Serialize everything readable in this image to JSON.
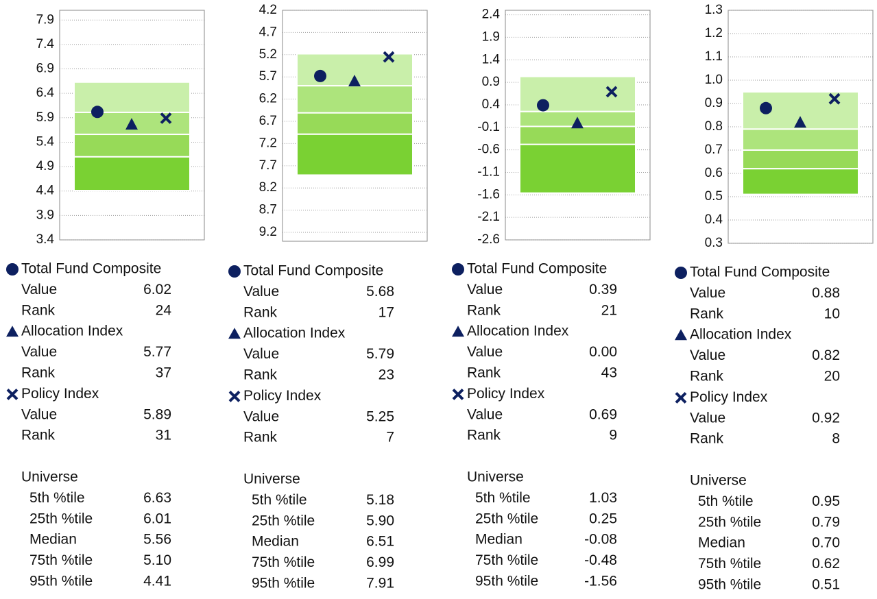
{
  "chart_data": [
    {
      "type": "percentile",
      "ylim": [
        3.4,
        8.1
      ],
      "yticks": [
        3.4,
        3.9,
        4.4,
        4.9,
        5.4,
        5.9,
        6.4,
        6.9,
        7.4,
        7.9
      ],
      "grid": true,
      "value_label": "Value",
      "rank_label": "Rank",
      "series": [
        {
          "name": "Total Fund Composite",
          "marker": "circle",
          "color": "#0d2060",
          "values": [
            6.02
          ],
          "value_labels": [
            "6.02"
          ],
          "rank": 24
        },
        {
          "name": "Allocation Index",
          "marker": "triangle",
          "color": "#0d2060",
          "values": [
            5.77
          ],
          "value_labels": [
            "5.77"
          ],
          "rank": 37
        },
        {
          "name": "Policy Index",
          "marker": "x",
          "color": "#0d2060",
          "values": [
            5.89
          ],
          "value_labels": [
            "5.89"
          ],
          "rank": 31
        }
      ],
      "universe": {
        "name": "Universe",
        "labels": [
          "5th %tile",
          "25th %tile",
          "Median",
          "75th %tile",
          "95th %tile"
        ],
        "values": [
          6.63,
          6.01,
          5.56,
          5.1,
          4.41
        ],
        "value_labels": [
          "6.63",
          "6.01",
          "5.56",
          "5.10",
          "4.41"
        ],
        "colors": [
          "#c9efaa",
          "#ade47c",
          "#97da58",
          "#7ad133"
        ]
      }
    },
    {
      "type": "percentile",
      "ylim": [
        9.4,
        4.2
      ],
      "yticks": [
        4.2,
        4.7,
        5.2,
        5.7,
        6.2,
        6.7,
        7.2,
        7.7,
        8.2,
        8.7,
        9.2
      ],
      "grid": true,
      "value_label": "Value",
      "rank_label": "Rank",
      "series": [
        {
          "name": "Total Fund Composite",
          "marker": "circle",
          "color": "#0d2060",
          "values": [
            5.68
          ],
          "value_labels": [
            "5.68"
          ],
          "rank": 17
        },
        {
          "name": "Allocation Index",
          "marker": "triangle",
          "color": "#0d2060",
          "values": [
            5.79
          ],
          "value_labels": [
            "5.79"
          ],
          "rank": 23
        },
        {
          "name": "Policy Index",
          "marker": "x",
          "color": "#0d2060",
          "values": [
            5.25
          ],
          "value_labels": [
            "5.25"
          ],
          "rank": 7
        }
      ],
      "universe": {
        "name": "Universe",
        "labels": [
          "5th %tile",
          "25th %tile",
          "Median",
          "75th %tile",
          "95th %tile"
        ],
        "values": [
          5.18,
          5.9,
          6.51,
          6.99,
          7.91
        ],
        "value_labels": [
          "5.18",
          "5.90",
          "6.51",
          "6.99",
          "7.91"
        ],
        "colors": [
          "#c9efaa",
          "#ade47c",
          "#97da58",
          "#7ad133"
        ]
      }
    },
    {
      "type": "percentile",
      "ylim": [
        -2.6,
        2.5
      ],
      "yticks": [
        -2.6,
        -2.1,
        -1.6,
        -1.1,
        -0.6,
        -0.1,
        0.4,
        0.9,
        1.4,
        1.9,
        2.4
      ],
      "grid": true,
      "value_label": "Value",
      "rank_label": "Rank",
      "series": [
        {
          "name": "Total Fund Composite",
          "marker": "circle",
          "color": "#0d2060",
          "values": [
            0.39
          ],
          "value_labels": [
            "0.39"
          ],
          "rank": 21
        },
        {
          "name": "Allocation Index",
          "marker": "triangle",
          "color": "#0d2060",
          "values": [
            0.0
          ],
          "value_labels": [
            "0.00"
          ],
          "rank": 43
        },
        {
          "name": "Policy Index",
          "marker": "x",
          "color": "#0d2060",
          "values": [
            0.69
          ],
          "value_labels": [
            "0.69"
          ],
          "rank": 9
        }
      ],
      "universe": {
        "name": "Universe",
        "labels": [
          "5th %tile",
          "25th %tile",
          "Median",
          "75th %tile",
          "95th %tile"
        ],
        "values": [
          1.03,
          0.25,
          -0.08,
          -0.48,
          -1.56
        ],
        "value_labels": [
          "1.03",
          "0.25",
          "-0.08",
          "-0.48",
          "-1.56"
        ],
        "colors": [
          "#c9efaa",
          "#ade47c",
          "#97da58",
          "#7ad133"
        ]
      }
    },
    {
      "type": "percentile",
      "ylim": [
        0.3,
        1.3
      ],
      "yticks": [
        0.3,
        0.4,
        0.5,
        0.6,
        0.7,
        0.8,
        0.9,
        {
          "value": 1,
          "label": "1.0"
        },
        1.1,
        1.2,
        1.3
      ],
      "grid": true,
      "value_label": "Value",
      "rank_label": "Rank",
      "series": [
        {
          "name": "Total Fund Composite",
          "marker": "circle",
          "color": "#0d2060",
          "values": [
            0.88
          ],
          "value_labels": [
            "0.88"
          ],
          "rank": 10
        },
        {
          "name": "Allocation Index",
          "marker": "triangle",
          "color": "#0d2060",
          "values": [
            0.82
          ],
          "value_labels": [
            "0.82"
          ],
          "rank": 20
        },
        {
          "name": "Policy Index",
          "marker": "x",
          "color": "#0d2060",
          "values": [
            0.92
          ],
          "value_labels": [
            "0.92"
          ],
          "rank": 8
        }
      ],
      "universe": {
        "name": "Universe",
        "labels": [
          "5th %tile",
          "25th %tile",
          "Median",
          "75th %tile",
          "95th %tile"
        ],
        "values": [
          0.95,
          0.79,
          0.7,
          0.62,
          0.51
        ],
        "value_labels": [
          "0.95",
          "0.79",
          "0.70",
          "0.62",
          "0.51"
        ],
        "colors": [
          "#c9efaa",
          "#ade47c",
          "#97da58",
          "#7ad133"
        ]
      }
    }
  ]
}
